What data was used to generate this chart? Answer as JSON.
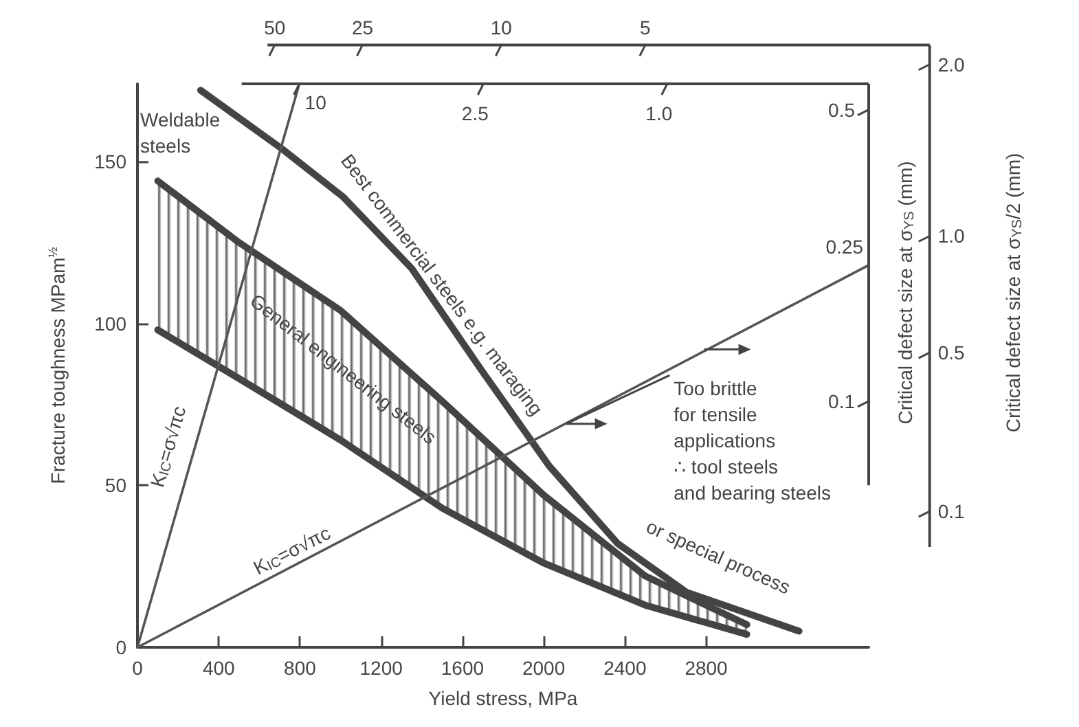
{
  "chart_data": {
    "type": "line",
    "xlabel": "Yield stress, MPa",
    "ylabel": "Fracture toughness MPam$^{½}$",
    "xlim": [
      0,
      3600
    ],
    "xticks": [
      0,
      400,
      800,
      1200,
      1600,
      2000,
      2400,
      2800
    ],
    "ylim": [
      0,
      174
    ],
    "yticks": [
      0,
      50,
      100,
      150
    ],
    "grid": false,
    "marker": "none",
    "line_style": "solid",
    "series": [
      {
        "color": "#444444",
        "x": [
          311,
          710,
          1014,
          1350,
          1689,
          2027,
          2365,
          2703,
          3257
        ],
        "values": [
          172,
          154,
          139,
          117,
          86,
          56,
          32,
          17,
          5
        ]
      },
      {
        "color": "#444444",
        "x": [
          100,
          500,
          1000,
          1500,
          2000,
          2500,
          3000
        ],
        "values": [
          144,
          125,
          104,
          76,
          47,
          22,
          7
        ],
        "lower": [
          98,
          83,
          64,
          43,
          26,
          13,
          4
        ],
        "upper": [
          144,
          125,
          104,
          76,
          47,
          22,
          7
        ]
      },
      {
        "color": "#444444",
        "x": [
          100,
          500,
          1000,
          1500,
          2000,
          2500,
          3000
        ],
        "values": [
          98,
          83,
          64,
          43,
          26,
          13,
          4
        ]
      },
      {
        "color": "#555555",
        "x": [
          0,
          797
        ],
        "values": [
          0,
          174
        ]
      },
      {
        "color": "#555555",
        "x": [
          0,
          3600
        ],
        "values": [
          0,
          118
        ]
      }
    ],
    "annotations": [
      "Weldable\nsteels",
      "Best commercial steels e.g. maraging",
      "or special process",
      "General engineering steels",
      "K$_{IC}$=σ√πc",
      "K$_{IC}$=σ√πc",
      {
        "text": "Too brittle\nfor tensile\napplications\n∴ tool steels\nand bearing steels",
        "x": 2110,
        "y": 69
      },
      "50",
      "25",
      "10",
      "5",
      "10",
      "2.5",
      "1.0",
      "0.5",
      "0.25",
      "0.1",
      "2.0",
      "1.0",
      "0.5",
      "0.1",
      "Critical defect size at σ$_{YS}$ (mm)",
      "Critical defect size at σ$_{YS}$/2 (mm)"
    ]
  }
}
